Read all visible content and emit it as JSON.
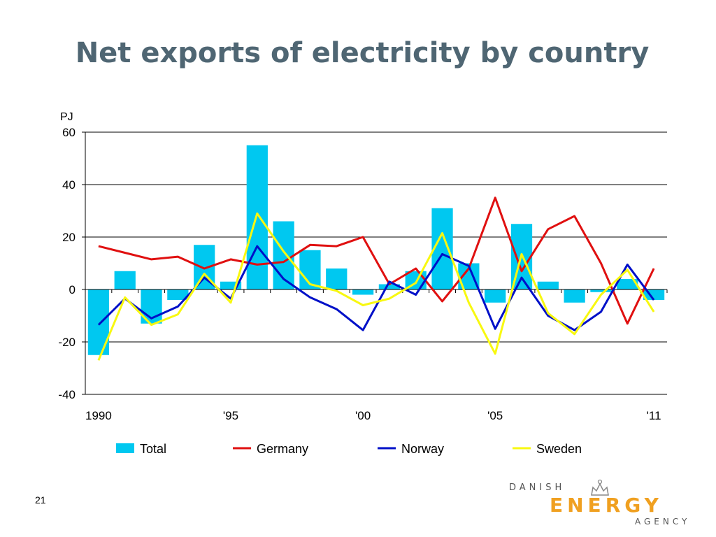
{
  "slide": {
    "title": "Net exports of electricity by country",
    "page_number": "21"
  },
  "logo": {
    "line1": "DANISH",
    "line2": "ENERGY",
    "line3": "AGENCY"
  },
  "colors": {
    "title": "#4f6673",
    "total": "#00c8f0",
    "germany": "#e01010",
    "norway": "#0010c8",
    "sweden": "#f8f810",
    "logo_orange": "#f0a020"
  },
  "chart_data": {
    "type": "bar",
    "ylabel": "PJ",
    "ylim": [
      -40,
      60
    ],
    "yticks": [
      "60",
      "40",
      "20",
      "0",
      "-20",
      "-40"
    ],
    "grid": true,
    "legend_position": "bottom",
    "x": [
      1990,
      1991,
      1992,
      1993,
      1994,
      1995,
      1996,
      1997,
      1998,
      1999,
      2000,
      2001,
      2002,
      2003,
      2004,
      2005,
      2006,
      2007,
      2008,
      2009,
      2010,
      2011
    ],
    "xtick_labels": [
      "1990",
      "'95",
      "'00",
      "'05",
      "'11"
    ],
    "series": [
      {
        "name": "Total",
        "type": "bar",
        "values": [
          -25,
          7,
          -13,
          -4,
          17,
          3,
          55,
          26,
          15,
          8,
          -2,
          2,
          7,
          31,
          10,
          -5,
          25,
          3,
          -5,
          -1,
          4,
          -4
        ]
      },
      {
        "name": "Germany",
        "type": "line",
        "values": [
          16.5,
          14,
          11.5,
          12.5,
          8,
          11.5,
          9.5,
          10.5,
          17,
          16.5,
          20,
          2,
          8,
          -4.5,
          8,
          35,
          7,
          23,
          28,
          10,
          -13,
          8
        ]
      },
      {
        "name": "Norway",
        "type": "line",
        "values": [
          -13.5,
          -3.5,
          -11,
          -6.5,
          4.5,
          -3.5,
          16.5,
          4,
          -3,
          -7.5,
          -15.5,
          3,
          -2,
          13.5,
          9,
          -15,
          4.5,
          -10,
          -15.5,
          -8.5,
          9.5,
          -4
        ]
      },
      {
        "name": "Sweden",
        "type": "line",
        "values": [
          -27,
          -3,
          -13.5,
          -9.5,
          6,
          -5,
          29,
          14.5,
          2,
          -0.5,
          -6,
          -3.5,
          2.5,
          21.5,
          -5,
          -24.5,
          13.5,
          -9,
          -17,
          -2,
          7.5,
          -8.5
        ]
      }
    ]
  }
}
